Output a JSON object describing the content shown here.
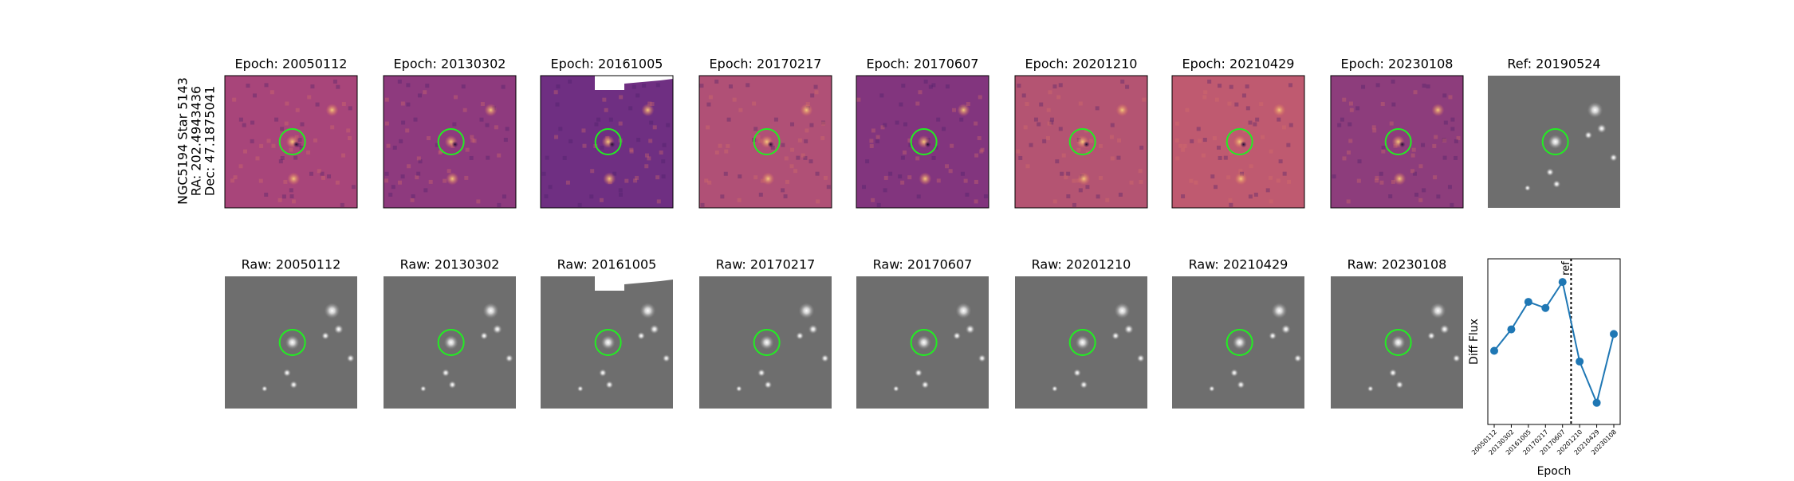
{
  "star_info": [
    "NGC5194 Star 5143",
    "RA: 202.4943436",
    "Dec: 47.1875041"
  ],
  "diff_panels": [
    "Epoch: 20050112",
    "Epoch: 20130302",
    "Epoch: 20161005",
    "Epoch: 20170217",
    "Epoch: 20170607",
    "Epoch: 20201210",
    "Epoch: 20210429",
    "Epoch: 20230108"
  ],
  "ref_panel": "Ref: 20190524",
  "raw_panels": [
    "Raw: 20050112",
    "Raw: 20130302",
    "Raw: 20161005",
    "Raw: 20170217",
    "Raw: 20170607",
    "Raw: 20201210",
    "Raw: 20210429",
    "Raw: 20230108"
  ],
  "chart_data": {
    "type": "line",
    "xlabel": "Epoch",
    "ylabel": "Diff Flux",
    "categories": [
      "20050112",
      "20130302",
      "20161005",
      "20170217",
      "20170607",
      "20201210",
      "20210429",
      "20230108"
    ],
    "series": [
      {
        "name": "Diff Flux",
        "color": "#1f77b4",
        "values": [
          0.44,
          0.58,
          0.76,
          0.72,
          0.89,
          0.37,
          0.1,
          0.55
        ]
      }
    ],
    "ylim": [
      0,
      1
    ],
    "annotation": "ref"
  }
}
